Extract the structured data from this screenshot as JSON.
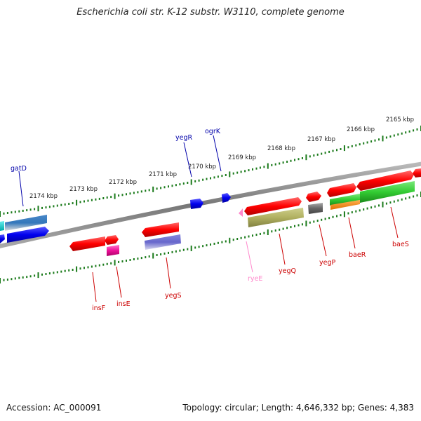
{
  "title": "Escherichia coli str. K-12 substr. W3110, complete genome",
  "footer": {
    "accession": "Accession: AC_000091",
    "summary": "Topology: circular; Length: 4,646,332 bp; Genes: 4,383"
  },
  "ticks": [
    {
      "label": "2174 kbp"
    },
    {
      "label": "2173 kbp"
    },
    {
      "label": "2172 kbp"
    },
    {
      "label": "2171 kbp"
    },
    {
      "label": "2170 kbp"
    },
    {
      "label": "2169 kbp"
    },
    {
      "label": "2168 kbp"
    },
    {
      "label": "2167 kbp"
    },
    {
      "label": "2166 kbp"
    },
    {
      "label": "2165 kbp"
    }
  ],
  "genes": {
    "gatD": "gatD",
    "yegR": "yegR",
    "ogrK": "ogrK",
    "insF": "insF",
    "insE": "insE",
    "yegS": "yegS",
    "ryeE": "ryeE",
    "yegQ": "yegQ",
    "yegP": "yegP",
    "baeR": "baeR",
    "baeS": "baeS"
  },
  "colors": {
    "cds": "#ff0000",
    "blue_gene": "#0000ee",
    "rna": "#ff88cc",
    "label_red": "#cc0000",
    "label_blue": "#0000aa",
    "backbone": "#888888",
    "tick": "#1a7a1a"
  }
}
